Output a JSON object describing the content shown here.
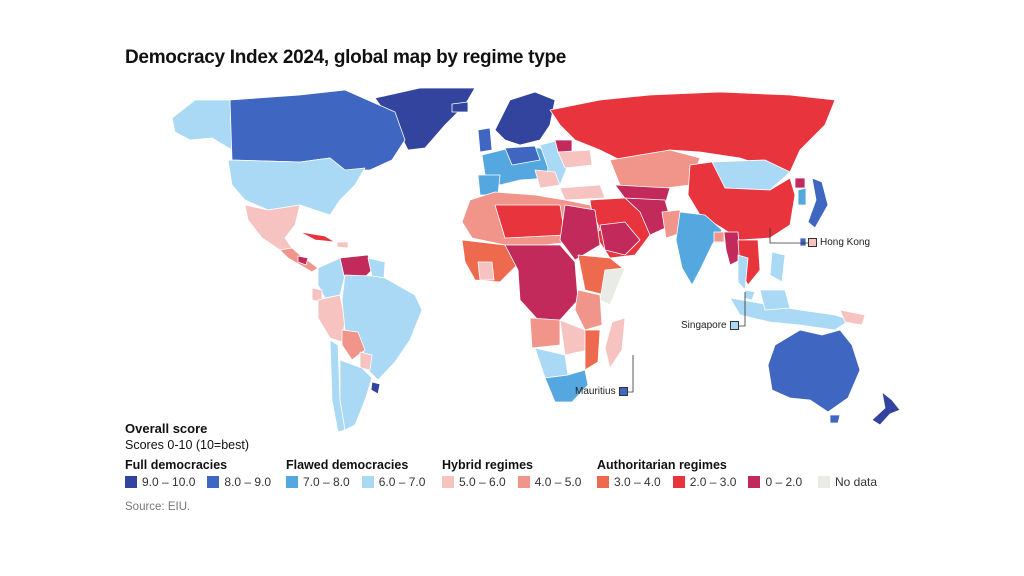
{
  "title": "Democracy Index 2024, global map by regime type",
  "callouts": {
    "hong_kong": "Hong Kong",
    "singapore": "Singapore",
    "mauritius": "Mauritius"
  },
  "legend": {
    "heading": "Overall score",
    "subheading": "Scores 0-10 (10=best)",
    "groups": [
      {
        "title": "Full democracies",
        "items": [
          {
            "label": "9.0 – 10.0",
            "color": "#33449e"
          },
          {
            "label": "8.0 – 9.0",
            "color": "#3f66c0"
          }
        ]
      },
      {
        "title": "Flawed democracies",
        "items": [
          {
            "label": "7.0 – 8.0",
            "color": "#55a7e0"
          },
          {
            "label": "6.0 – 7.0",
            "color": "#a9d9f4"
          }
        ]
      },
      {
        "title": "Hybrid regimes",
        "items": [
          {
            "label": "5.0 – 6.0",
            "color": "#f6c3c1"
          },
          {
            "label": "4.0 – 5.0",
            "color": "#f1958a"
          }
        ]
      },
      {
        "title": "Authoritarian regimes",
        "items": [
          {
            "label": "3.0 – 4.0",
            "color": "#ee6a4f"
          },
          {
            "label": "2.0 – 3.0",
            "color": "#e8343d"
          },
          {
            "label": "0 – 2.0",
            "color": "#c22a5c"
          }
        ]
      },
      {
        "title": "",
        "items": [
          {
            "label": "No data",
            "color": "#e9ebe6"
          }
        ]
      }
    ]
  },
  "source": "Source: EIU."
}
